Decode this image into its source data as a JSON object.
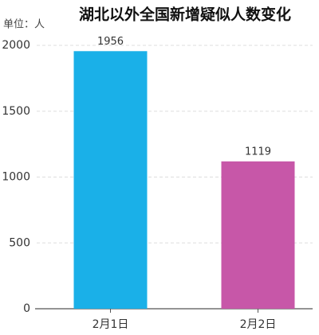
{
  "chart_data": {
    "type": "bar",
    "title": "湖北以外全国新增疑似人数变化",
    "unit_label": "单位：人",
    "categories": [
      "2月1日",
      "2月2日"
    ],
    "values": [
      1956,
      1119
    ],
    "colors": [
      "#1ab0e8",
      "#c757a8"
    ],
    "ylim": [
      0,
      2000
    ],
    "yticks": [
      0,
      500,
      1000,
      1500,
      2000
    ],
    "grid": true
  }
}
